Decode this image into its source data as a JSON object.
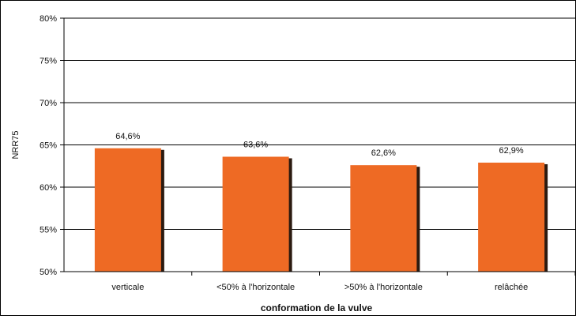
{
  "chart_data": {
    "type": "bar",
    "title": "",
    "xlabel": "conformation de la vulve",
    "ylabel": "NRR75",
    "categories": [
      "verticale",
      "<50% à l'horizontale",
      ">50% à l'horizontale",
      "relâchée"
    ],
    "values": [
      64.6,
      63.6,
      62.6,
      62.9
    ],
    "data_labels": [
      "64,6%",
      "63,6%",
      "62,6%",
      "62,9%"
    ],
    "ylim": [
      50,
      80
    ],
    "yticks": [
      50,
      55,
      60,
      65,
      70,
      75,
      80
    ],
    "ytick_labels": [
      "50%",
      "55%",
      "60%",
      "65%",
      "70%",
      "75%",
      "80%"
    ],
    "grid": true,
    "legend": "none",
    "colors": {
      "bar": "#ee6a24",
      "bar_shadow": "#2b1a10",
      "grid": "#000000",
      "text": "#111111"
    }
  }
}
